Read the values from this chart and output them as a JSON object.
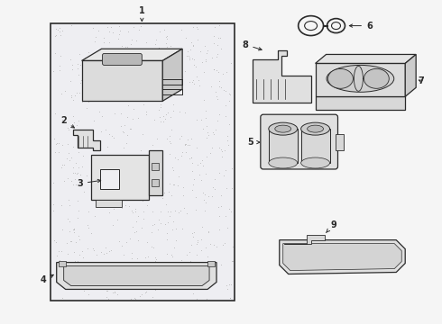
{
  "bg_color": "#f5f5f5",
  "box_bg": "#eeeef2",
  "lc": "#2a2a2a",
  "white": "#ffffff",
  "figsize": [
    4.9,
    3.6
  ],
  "dpi": 100
}
